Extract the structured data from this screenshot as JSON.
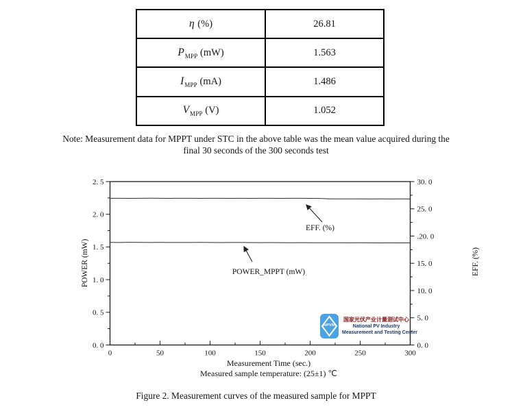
{
  "table": {
    "rows": [
      {
        "symbol": "η",
        "sub": "",
        "unit": " (%)",
        "value": "26.81"
      },
      {
        "symbol": "P",
        "sub": "MPP",
        "unit": " (mW)",
        "value": "1.563"
      },
      {
        "symbol": "I",
        "sub": "MPP",
        "unit": " (mA)",
        "value": "1.486"
      },
      {
        "symbol": "V",
        "sub": "MPP",
        "unit": " (V)",
        "value": "1.052"
      }
    ]
  },
  "note": {
    "line1": "Note: Measurement data for MPPT under STC in the above table was the mean value acquired during the",
    "line2": "final 30 seconds of the 300 seconds test"
  },
  "caption": "Figure 2. Measurement curves of the measured sample for MPPT",
  "logo": {
    "monogram": "NPVM",
    "line_cn": "国家光伏产业计量测试中心",
    "line_en1": "National PV Industry",
    "line_en2": "Measurement and Testing Center",
    "icon_color": "#49a2e2",
    "cn_color": "#8b1c1c",
    "en_color": "#1c3a6e"
  },
  "chart_data": {
    "type": "line",
    "title": "",
    "xlabel": "Measurement Time (sec.)",
    "xlabel2": "Measured sample temperature: (25±1) ℃",
    "ylabel_left": "POWER (mW)",
    "ylabel_right": "EFF. (%)",
    "xlim": [
      0,
      300
    ],
    "ylim_left": [
      0,
      2.5
    ],
    "ylim_right": [
      0,
      30
    ],
    "grid": false,
    "x_ticks": [
      0,
      50,
      100,
      150,
      200,
      250,
      300
    ],
    "x_tick_labels": [
      "0",
      "50",
      "100",
      "150",
      "200",
      "250",
      "300"
    ],
    "x_minor_ticks": [
      25,
      75,
      125,
      175,
      225,
      275
    ],
    "left_ticks": [
      0,
      0.5,
      1.0,
      1.5,
      2.0,
      2.5
    ],
    "left_tick_labels": [
      "0. 0",
      "0. 5",
      "1. 0",
      "1. 5",
      "2. 0",
      "2. 5"
    ],
    "left_minor_ticks": [
      0.25,
      0.75,
      1.25,
      1.75,
      2.25
    ],
    "right_ticks": [
      0,
      5,
      10,
      15,
      20,
      25,
      30
    ],
    "right_tick_labels": [
      "0. 0",
      "5. 0",
      "10. 0",
      "15. 0",
      ".20. 0",
      "25. 0",
      "30. 0"
    ],
    "right_minor_ticks": [
      2.5,
      7.5,
      12.5,
      17.5,
      22.5,
      27.5
    ],
    "x": [
      0,
      10,
      20,
      30,
      40,
      50,
      60,
      70,
      80,
      90,
      100,
      110,
      120,
      130,
      140,
      150,
      160,
      170,
      180,
      190,
      200,
      210,
      220,
      230,
      240,
      250,
      260,
      270,
      280,
      290,
      300
    ],
    "series": [
      {
        "name": "EFF. (%)",
        "axis": "right",
        "values": [
          26.93,
          26.94,
          26.92,
          26.93,
          26.95,
          26.93,
          26.92,
          26.94,
          26.93,
          26.92,
          26.93,
          26.94,
          26.92,
          26.93,
          26.92,
          26.94,
          26.93,
          26.92,
          26.93,
          26.94,
          26.92,
          26.91,
          26.83,
          26.82,
          26.83,
          26.82,
          26.81,
          26.82,
          26.81,
          26.82,
          26.81
        ]
      },
      {
        "name": "POWER_MPPT (mW)",
        "axis": "left",
        "values": [
          1.57,
          1.569,
          1.571,
          1.57,
          1.568,
          1.57,
          1.569,
          1.568,
          1.569,
          1.57,
          1.568,
          1.567,
          1.568,
          1.569,
          1.567,
          1.566,
          1.567,
          1.566,
          1.565,
          1.566,
          1.565,
          1.564,
          1.565,
          1.564,
          1.563,
          1.564,
          1.563,
          1.562,
          1.563,
          1.562,
          1.563
        ]
      }
    ],
    "annotations": [
      {
        "text": "EFF. (%)"
      },
      {
        "text": "POWER_MPPT (mW)"
      }
    ]
  }
}
